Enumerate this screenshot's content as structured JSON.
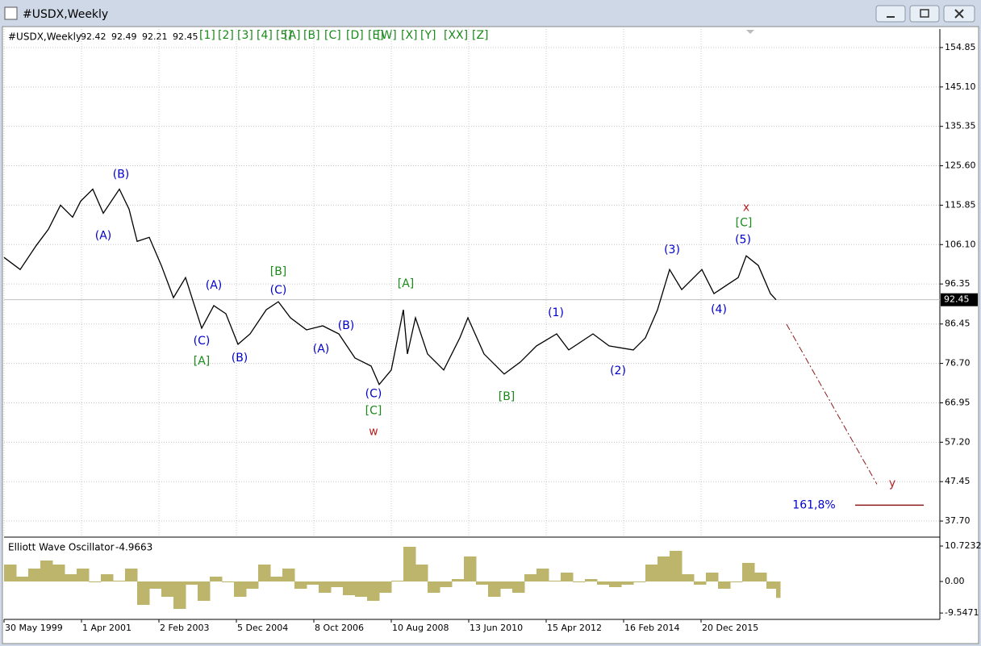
{
  "window": {
    "title": "#USDX,Weekly"
  },
  "wave_buttons": [
    "[1]",
    "[2]",
    "[3]",
    "[4]",
    "[5]",
    "[A]",
    "[B]",
    "[C]",
    "[D]",
    "[E]",
    "[W]",
    "[X]",
    "[Y]",
    "[XX]",
    "[Z]"
  ],
  "chart_data": [
    {
      "type": "line",
      "title": "#USDX,Weekly",
      "ohlc": [
        92.42,
        92.49,
        92.21
      ],
      "xlim": [
        0,
        1160
      ],
      "xticks": [
        {
          "value": 0,
          "label": "30 May 1999"
        },
        {
          "value": 96,
          "label": "1 Apr 2001"
        },
        {
          "value": 192,
          "label": "2 Feb 2003"
        },
        {
          "value": 288,
          "label": "5 Dec 2004"
        },
        {
          "value": 384,
          "label": "8 Oct 2006"
        },
        {
          "value": 480,
          "label": "10 Aug 2008"
        },
        {
          "value": 576,
          "label": "13 Jun 2010"
        },
        {
          "value": 672,
          "label": "15 Apr 2012"
        },
        {
          "value": 768,
          "label": "16 Feb 2014"
        },
        {
          "value": 864,
          "label": "20 Dec 2015"
        }
      ],
      "ylim": [
        33.92,
        159.43
      ],
      "yticks": [
        154.85,
        {
          "value": 145.1,
          "label": "145.10"
        },
        135.35,
        {
          "value": 125.6,
          "label": "125.60"
        },
        115.85,
        {
          "value": 106.1,
          "label": "106.10"
        },
        96.35,
        86.45,
        {
          "value": 76.7,
          "label": "76.70"
        },
        66.95,
        {
          "value": 57.2,
          "label": "57.20"
        },
        47.45,
        {
          "value": 37.7,
          "label": "37.70"
        }
      ],
      "grid": true,
      "series": [
        {
          "color": "#000000",
          "x": [
            0,
            20,
            40,
            55,
            70,
            85,
            95,
            110,
            123,
            143,
            155,
            165,
            180,
            195,
            210,
            225,
            245,
            260,
            275,
            290,
            305,
            325,
            340,
            355,
            375,
            395,
            415,
            435,
            455,
            465,
            480,
            495,
            500,
            510,
            525,
            545,
            565,
            575,
            595,
            620,
            640,
            660,
            685,
            700,
            730,
            750,
            780,
            795,
            810,
            825,
            840,
            865,
            880,
            895,
            910,
            920,
            935,
            950,
            957
          ],
          "values": [
            102.92,
            99.93,
            105.9,
            109.88,
            115.85,
            112.87,
            116.85,
            119.83,
            113.86,
            119.83,
            114.85,
            106.9,
            107.89,
            100.93,
            92.97,
            97.94,
            85.41,
            90.98,
            88.99,
            81.43,
            84.01,
            89.98,
            91.97,
            87.99,
            85.01,
            86.0,
            84.01,
            78.04,
            76.05,
            71.48,
            75.06,
            89.98,
            79.04,
            87.99,
            79.04,
            75.06,
            83.02,
            87.99,
            79.04,
            74.06,
            77.05,
            81.03,
            84.01,
            80.03,
            84.01,
            81.03,
            80.03,
            83.02,
            89.98,
            99.93,
            94.96,
            99.93,
            93.96,
            95.95,
            97.94,
            103.31,
            100.93,
            93.96,
            92.45
          ]
        }
      ],
      "annotations": [
        {
          "text": "(B)",
          "x": 145,
          "y": 123.41,
          "color": "#0000cc"
        },
        {
          "text": "(A)",
          "x": 123,
          "y": 108.29,
          "color": "#0000cc"
        },
        {
          "text": "(A)",
          "x": 260,
          "y": 95.95,
          "color": "#0000cc"
        },
        {
          "text": "(C)",
          "x": 245,
          "y": 82.22,
          "color": "#0000cc"
        },
        {
          "text": "[A]",
          "x": 245,
          "y": 77.25,
          "color": "#1a8a1a"
        },
        {
          "text": "(B)",
          "x": 292,
          "y": 78.04,
          "color": "#0000cc"
        },
        {
          "text": "[B]",
          "x": 340,
          "y": 99.33,
          "color": "#1a8a1a"
        },
        {
          "text": "(C)",
          "x": 340,
          "y": 94.76,
          "color": "#0000cc"
        },
        {
          "text": "(B)",
          "x": 424,
          "y": 86.0,
          "color": "#0000cc"
        },
        {
          "text": "(A)",
          "x": 393,
          "y": 80.23,
          "color": "#0000cc"
        },
        {
          "text": "(C)",
          "x": 458,
          "y": 69.09,
          "color": "#0000cc"
        },
        {
          "text": "[C]",
          "x": 458,
          "y": 64.91,
          "color": "#1a8a1a"
        },
        {
          "text": "w",
          "x": 458,
          "y": 59.74,
          "color": "#b22222"
        },
        {
          "text": "[A]",
          "x": 498,
          "y": 96.35,
          "color": "#1a8a1a"
        },
        {
          "text": "[B]",
          "x": 623,
          "y": 68.49,
          "color": "#1a8a1a"
        },
        {
          "text": "(1)",
          "x": 684,
          "y": 89.19,
          "color": "#0000cc"
        },
        {
          "text": "(2)",
          "x": 761,
          "y": 74.86,
          "color": "#0000cc"
        },
        {
          "text": "(3)",
          "x": 828,
          "y": 104.71,
          "color": "#0000cc"
        },
        {
          "text": "(4)",
          "x": 886,
          "y": 89.98,
          "color": "#0000cc"
        },
        {
          "text": "(5)",
          "x": 916,
          "y": 107.29,
          "color": "#0000cc"
        },
        {
          "text": "[C]",
          "x": 917,
          "y": 111.47,
          "color": "#1a8a1a"
        },
        {
          "text": "x",
          "x": 920,
          "y": 115.25,
          "color": "#b22222"
        },
        {
          "text": "y",
          "x": 1101,
          "y": 47.0,
          "color": "#b22222"
        },
        {
          "text": "161,8%",
          "x": 1004,
          "y": 41.63,
          "color": "#0000cc"
        }
      ],
      "projection": {
        "x": [
          970,
          1082
        ],
        "values": [
          86.4,
          46.81
        ],
        "color": "#8b1a1a"
      },
      "target_line": {
        "x": [
          1055,
          1140
        ],
        "value": 41.63,
        "color": "#8b1a1a"
      }
    },
    {
      "type": "bar",
      "title": "Elliott Wave Oscillator",
      "xlim": [
        0,
        1160
      ],
      "ylim": [
        -11.47,
        12.93
      ],
      "yticks": [
        10.7232,
        {
          "value": 0,
          "label": "0.00"
        },
        -9.5471
      ],
      "series": [
        {
          "color": "#bdb56b",
          "x": [
            0,
            15,
            30,
            45,
            60,
            75,
            90,
            105,
            120,
            135,
            150,
            165,
            180,
            195,
            210,
            225,
            240,
            255,
            270,
            285,
            300,
            315,
            330,
            345,
            360,
            375,
            390,
            405,
            420,
            435,
            450,
            465,
            480,
            495,
            510,
            525,
            540,
            555,
            570,
            585,
            600,
            615,
            630,
            645,
            660,
            675,
            690,
            705,
            720,
            735,
            750,
            765,
            780,
            795,
            810,
            825,
            840,
            855,
            870,
            885,
            900,
            915,
            930,
            945,
            957
          ],
          "values": [
            5.12,
            1.46,
            3.9,
            6.34,
            5.12,
            2.2,
            3.9,
            -0.24,
            2.2,
            0.24,
            3.9,
            -7.08,
            -2.2,
            -4.64,
            -8.3,
            -0.98,
            -5.86,
            1.46,
            -0.24,
            -4.64,
            -2.2,
            5.12,
            1.46,
            3.9,
            -2.2,
            -0.98,
            -3.42,
            -1.71,
            -4.15,
            -4.64,
            -5.86,
            -3.42,
            0.24,
            10.49,
            5.12,
            -3.42,
            -1.71,
            0.73,
            7.56,
            -0.98,
            -4.64,
            -2.2,
            -3.42,
            2.2,
            3.9,
            0.24,
            2.68,
            -0.24,
            0.73,
            -0.98,
            -1.71,
            -0.98,
            -0.24,
            5.12,
            7.56,
            9.27,
            2.2,
            -0.98,
            2.68,
            -2.2,
            -0.24,
            5.61,
            2.68,
            -2.2,
            -4.9663
          ]
        }
      ]
    }
  ]
}
